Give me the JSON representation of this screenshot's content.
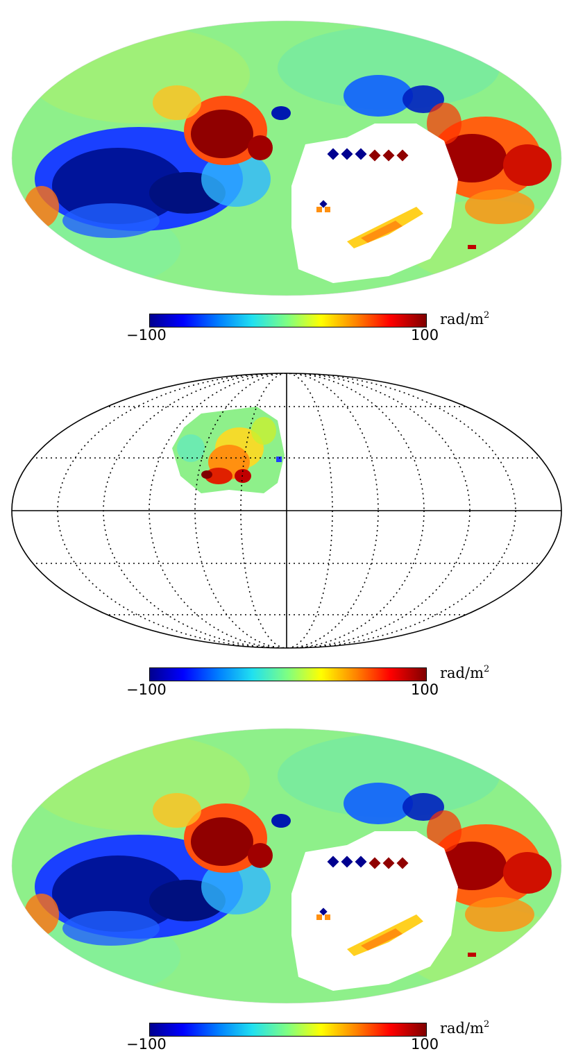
{
  "maps": [
    {
      "id": "top",
      "projection": "Mollweide",
      "graticule": false,
      "masked_region": true,
      "colorbar": {
        "min_label": "−100",
        "max_label": "100",
        "unit": "rad/m",
        "unit_exp": "2"
      }
    },
    {
      "id": "middle",
      "projection": "Mollweide",
      "graticule": true,
      "data_patch": "partial-sky",
      "colorbar": {
        "min_label": "−100",
        "max_label": "100",
        "unit": "rad/m",
        "unit_exp": "2"
      }
    },
    {
      "id": "bottom",
      "projection": "Mollweide",
      "graticule": false,
      "masked_region": true,
      "colorbar": {
        "min_label": "−100",
        "max_label": "100",
        "unit": "rad/m",
        "unit_exp": "2"
      }
    }
  ],
  "colormap": "jet",
  "colors": {
    "blue_dark": "#00008f",
    "blue": "#0050ff",
    "cyan": "#20e0f0",
    "green": "#80ff80",
    "yellow": "#ffe000",
    "orange": "#ff8000",
    "red": "#d00000",
    "dark_red": "#800000"
  }
}
